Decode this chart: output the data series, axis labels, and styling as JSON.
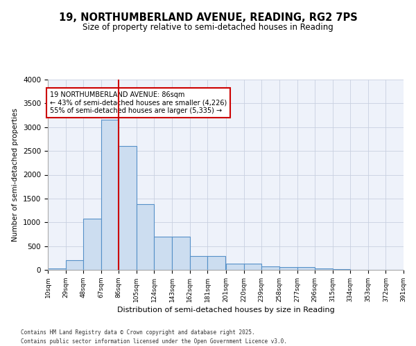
{
  "title_line1": "19, NORTHUMBERLAND AVENUE, READING, RG2 7PS",
  "title_line2": "Size of property relative to semi-detached houses in Reading",
  "xlabel": "Distribution of semi-detached houses by size in Reading",
  "ylabel": "Number of semi-detached properties",
  "property_size": 86,
  "property_label": "19 NORTHUMBERLAND AVENUE: 86sqm",
  "pct_smaller": 43,
  "pct_larger": 55,
  "count_smaller": 4226,
  "count_larger": 5335,
  "bin_edges": [
    10,
    29,
    48,
    67,
    86,
    105,
    124,
    143,
    162,
    181,
    201,
    220,
    239,
    258,
    277,
    296,
    315,
    334,
    353,
    372,
    391
  ],
  "counts": [
    30,
    200,
    1070,
    3150,
    2600,
    1380,
    700,
    700,
    290,
    290,
    130,
    130,
    80,
    60,
    60,
    30,
    15,
    5,
    3,
    2
  ],
  "bar_facecolor": "#ccddf0",
  "bar_edgecolor": "#5590c8",
  "redline_color": "#cc0000",
  "annotation_box_edgecolor": "#cc0000",
  "grid_color": "#c8d0e0",
  "background_color": "#eef2fa",
  "ylim": [
    0,
    4000
  ],
  "yticks": [
    0,
    500,
    1000,
    1500,
    2000,
    2500,
    3000,
    3500,
    4000
  ],
  "footer": "Contains HM Land Registry data © Crown copyright and database right 2025.\nContains public sector information licensed under the Open Government Licence v3.0.",
  "tick_labels": [
    "10sqm",
    "29sqm",
    "48sqm",
    "67sqm",
    "86sqm",
    "105sqm",
    "124sqm",
    "143sqm",
    "162sqm",
    "181sqm",
    "201sqm",
    "220sqm",
    "239sqm",
    "258sqm",
    "277sqm",
    "296sqm",
    "315sqm",
    "334sqm",
    "353sqm",
    "372sqm",
    "391sqm"
  ]
}
